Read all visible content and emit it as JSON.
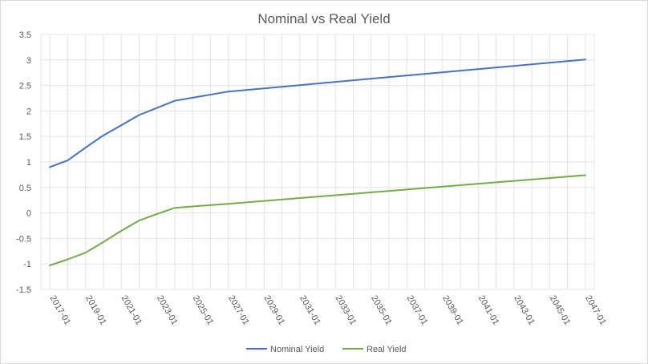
{
  "chart_data": {
    "type": "line",
    "title": "Nominal vs Real Yield",
    "xlabel": "",
    "ylabel": "",
    "ylim": [
      -1.5,
      3.5
    ],
    "ytick_step": 0.5,
    "y_ticks": [
      "3.5",
      "3",
      "2.5",
      "2",
      "1.5",
      "1",
      "0.5",
      "0",
      "-0.5",
      "-1",
      "-1.5"
    ],
    "x_tick_labels": [
      "2017-01",
      "2019-01",
      "2021-01",
      "2023-01",
      "2025-01",
      "2027-01",
      "2029-01",
      "2031-01",
      "2033-01",
      "2035-01",
      "2037-01",
      "2039-01",
      "2041-01",
      "2043-01",
      "2045-01",
      "2047-01"
    ],
    "x_range": [
      "2016-07",
      "2047-07"
    ],
    "grid": true,
    "legend_position": "bottom",
    "series": [
      {
        "name": "Nominal Yield",
        "color": "#4472c4",
        "points": [
          [
            "2017-01",
            0.9
          ],
          [
            "2018-01",
            1.03
          ],
          [
            "2019-01",
            1.28
          ],
          [
            "2020-01",
            1.52
          ],
          [
            "2021-01",
            1.72
          ],
          [
            "2022-01",
            1.92
          ],
          [
            "2023-01",
            2.06
          ],
          [
            "2024-01",
            2.2
          ],
          [
            "2027-01",
            2.38
          ],
          [
            "2047-01",
            3.01
          ]
        ]
      },
      {
        "name": "Real Yield",
        "color": "#70ad47",
        "points": [
          [
            "2017-01",
            -1.03
          ],
          [
            "2018-01",
            -0.91
          ],
          [
            "2019-01",
            -0.78
          ],
          [
            "2020-01",
            -0.57
          ],
          [
            "2021-01",
            -0.35
          ],
          [
            "2022-01",
            -0.15
          ],
          [
            "2023-01",
            -0.02
          ],
          [
            "2024-01",
            0.1
          ],
          [
            "2027-01",
            0.18
          ],
          [
            "2047-01",
            0.74
          ]
        ]
      }
    ]
  }
}
